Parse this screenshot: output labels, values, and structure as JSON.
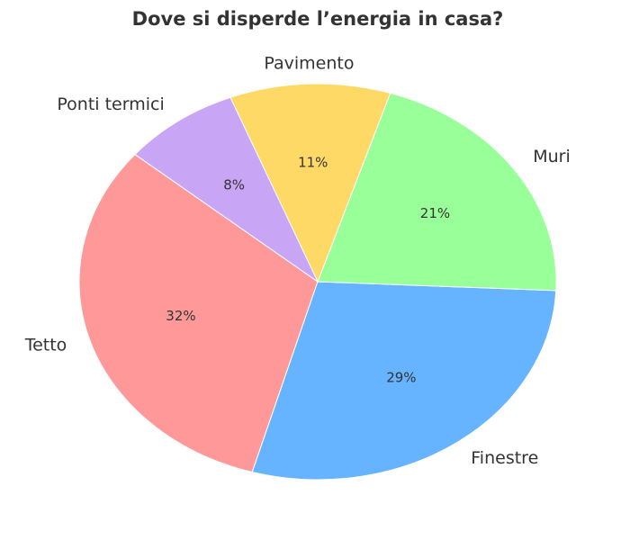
{
  "chart_data": {
    "type": "pie",
    "title": "Dove si disperde l’energia in casa?",
    "categories": [
      "Tetto",
      "Finestre",
      "Muri",
      "Pavimento",
      "Ponti termici"
    ],
    "values": [
      32,
      29,
      21,
      11,
      8
    ],
    "value_labels": [
      "32%",
      "29%",
      "21%",
      "11%",
      "8%"
    ],
    "colors": [
      "#ff9999",
      "#66b3ff",
      "#99ff99",
      "#ffd966",
      "#c9a6f5"
    ],
    "startangle": 140
  }
}
